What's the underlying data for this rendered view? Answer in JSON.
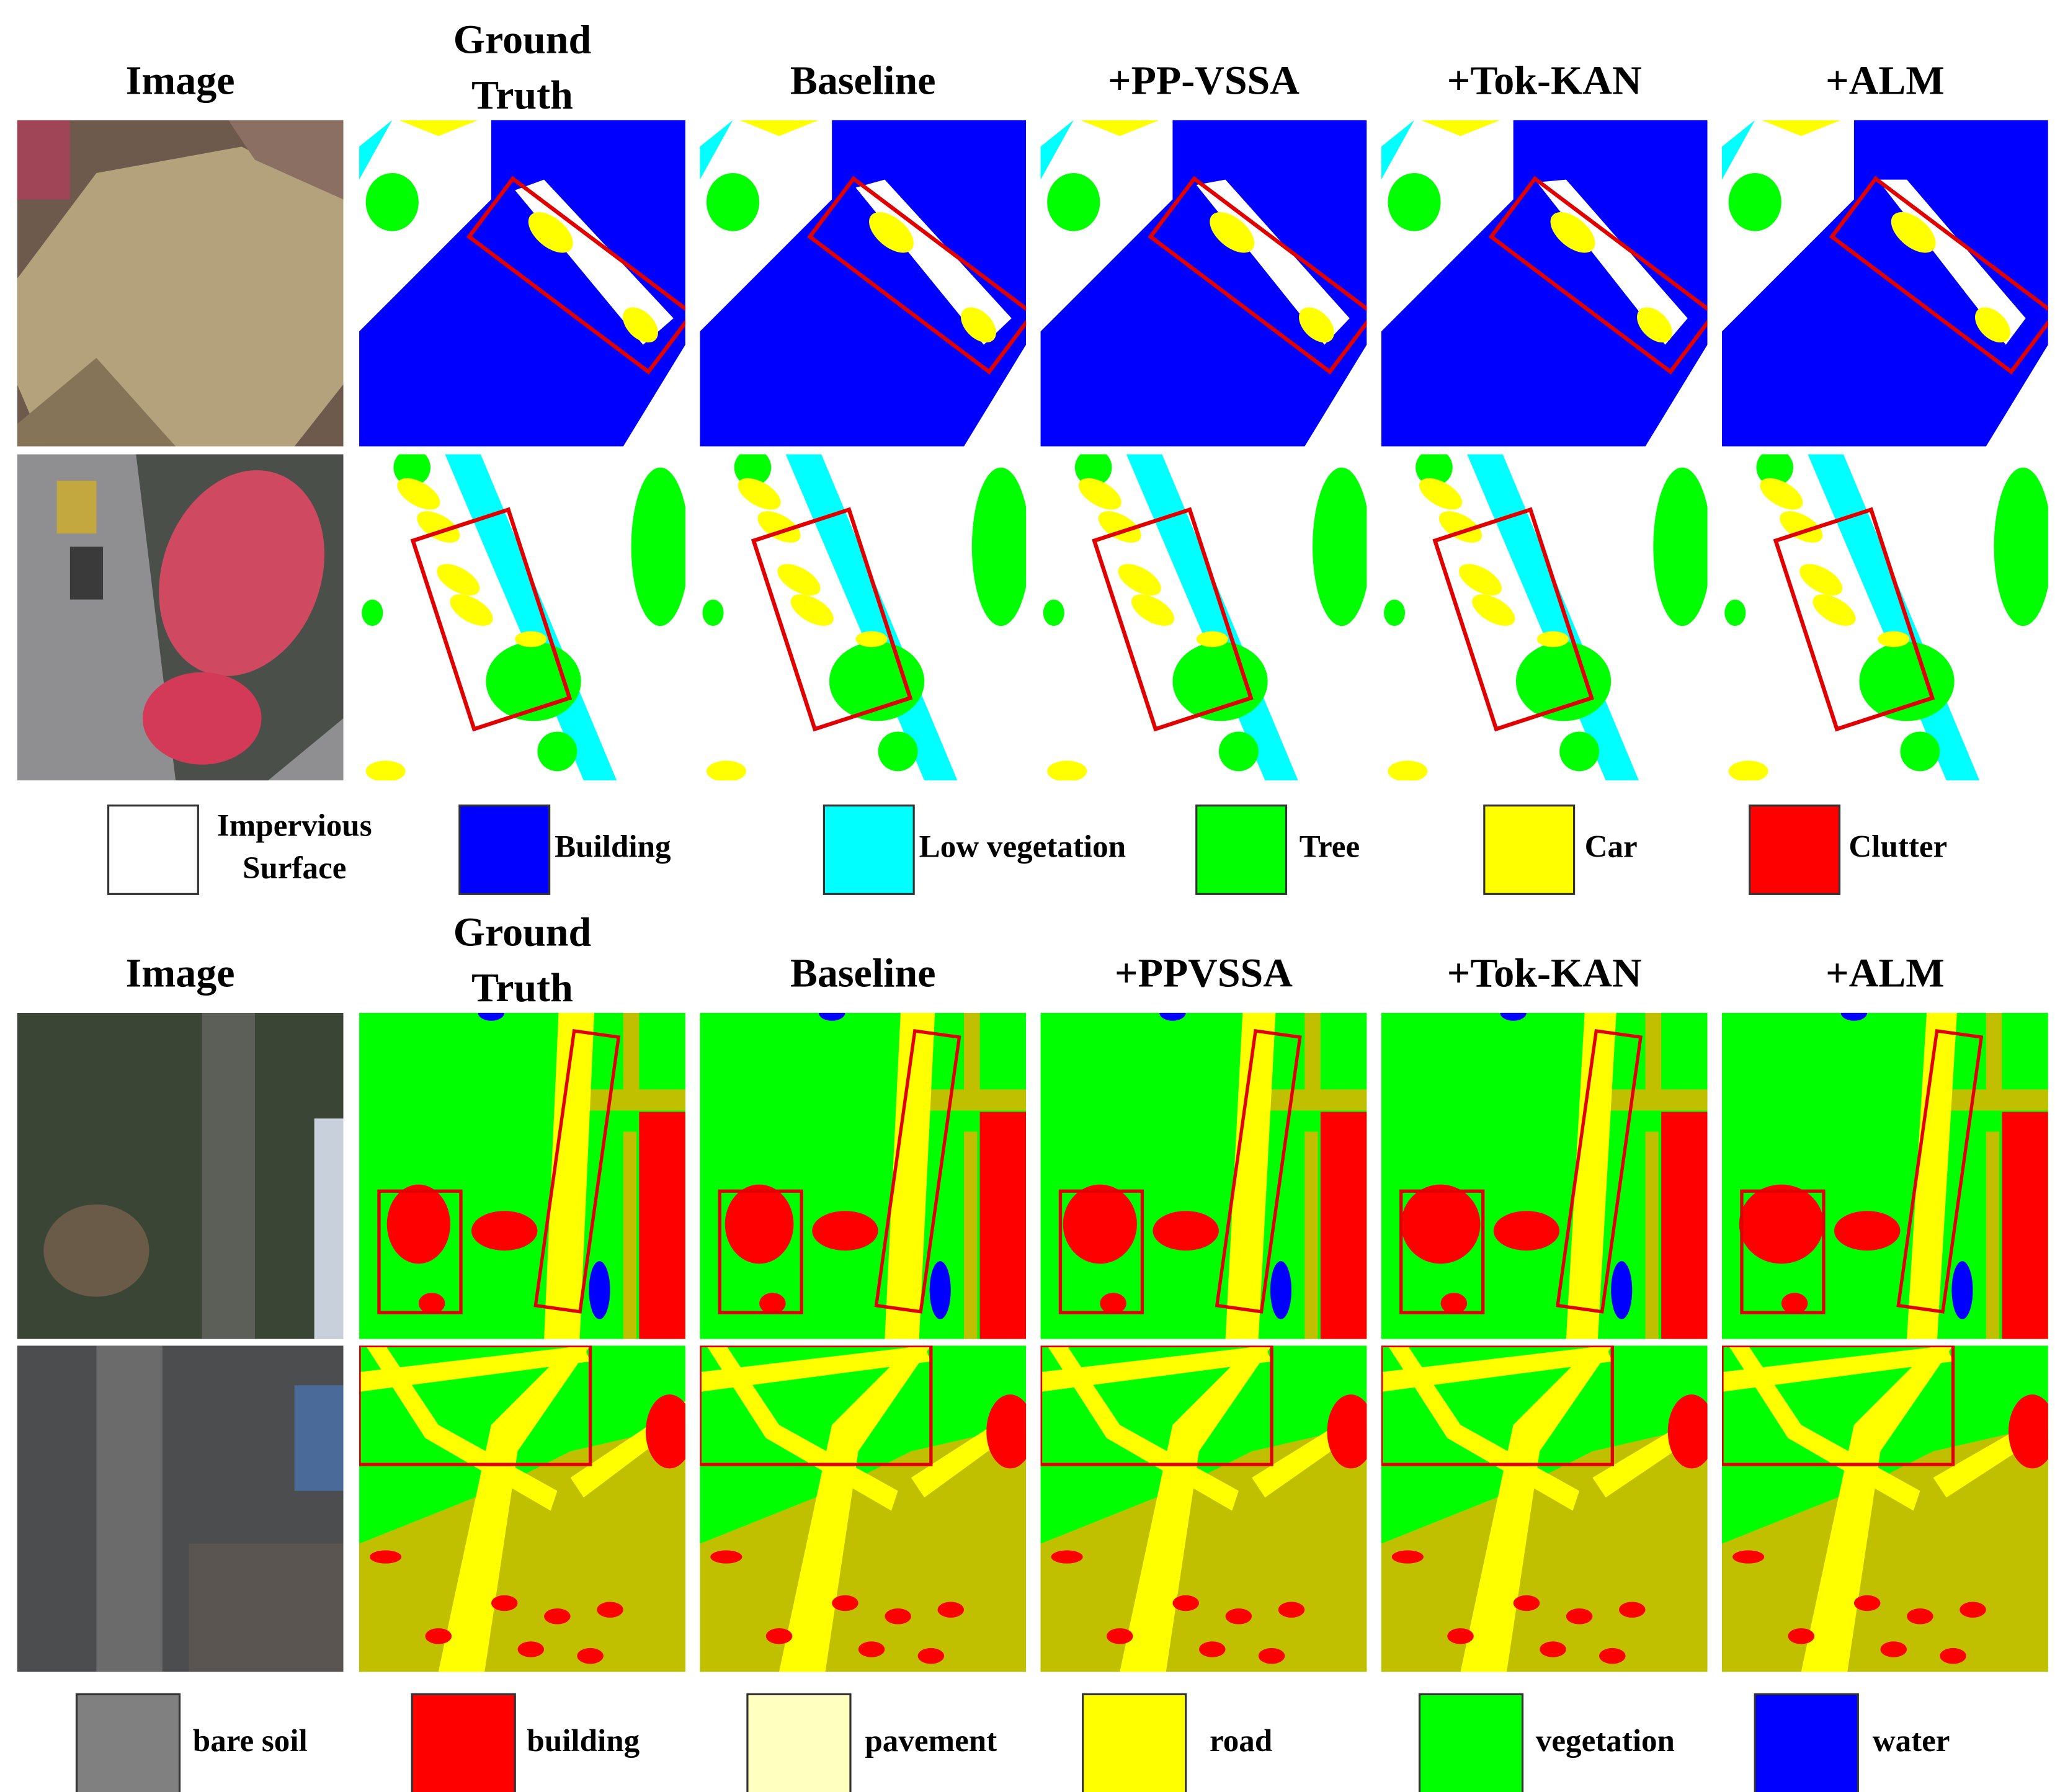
{
  "panels": [
    {
      "headers": [
        [
          "Image"
        ],
        [
          "Ground",
          "Truth"
        ],
        [
          "Baseline"
        ],
        [
          "+PP-VSSA"
        ],
        [
          "+Tok-KAN"
        ],
        [
          "+ALM"
        ]
      ],
      "legend": [
        {
          "lines": [
            "Impervious",
            "Surface"
          ],
          "color": "#ffffff"
        },
        {
          "lines": [
            "Building"
          ],
          "color": "#0000ff"
        },
        {
          "lines": [
            "Low vegetation"
          ],
          "color": "#00ffff"
        },
        {
          "lines": [
            "Tree"
          ],
          "color": "#00ff00"
        },
        {
          "lines": [
            "Car"
          ],
          "color": "#ffff00"
        },
        {
          "lines": [
            "Clutter"
          ],
          "color": "#ff0000"
        }
      ]
    },
    {
      "headers": [
        [
          "Image"
        ],
        [
          "Ground",
          "Truth"
        ],
        [
          "Baseline"
        ],
        [
          "+PPVSSA"
        ],
        [
          "+Tok-KAN"
        ],
        [
          "+ALM"
        ]
      ],
      "legend": [
        {
          "lines": [
            "bare soil"
          ],
          "color": "#808080"
        },
        {
          "lines": [
            "building"
          ],
          "color": "#ff0000"
        },
        {
          "lines": [
            "pavement"
          ],
          "color": "#ffffc0"
        },
        {
          "lines": [
            "road"
          ],
          "color": "#ffff00"
        },
        {
          "lines": [
            "vegetation"
          ],
          "color": "#00ff00"
        },
        {
          "lines": [
            "water"
          ],
          "color": "#0000ff"
        }
      ]
    }
  ]
}
